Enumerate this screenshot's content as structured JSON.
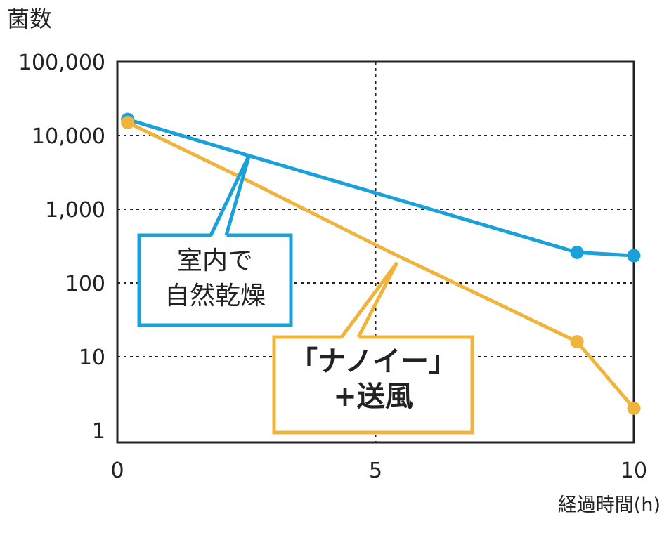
{
  "chart_data": {
    "type": "line",
    "ylabel": "菌数",
    "xlabel": "経過時間(h)",
    "yscale": "log",
    "ylim": [
      1,
      100000
    ],
    "xlim": [
      0,
      10
    ],
    "x_ticks": [
      "0",
      "5",
      "10"
    ],
    "y_ticks": [
      "1",
      "10",
      "100",
      "1,000",
      "10,000",
      "100,000"
    ],
    "grid": "dotted",
    "series": [
      {
        "name": "室内で自然乾燥",
        "color": "#1ba1d9",
        "points": [
          [
            0.2,
            16500
          ],
          [
            2.6,
            5200
          ],
          [
            8.9,
            260
          ],
          [
            10,
            235
          ]
        ],
        "markers": [
          [
            0.2,
            16500
          ],
          [
            8.9,
            260
          ],
          [
            10,
            235
          ]
        ],
        "callout_lines": [
          "室内で",
          "自然乾燥"
        ]
      },
      {
        "name": "「ナノイー」+送風",
        "color": "#f0b43c",
        "points": [
          [
            0.2,
            15000
          ],
          [
            2.4,
            2700
          ],
          [
            5.2,
            280
          ],
          [
            8.9,
            16
          ],
          [
            10,
            2
          ]
        ],
        "markers": [
          [
            0.2,
            15000
          ],
          [
            8.9,
            16
          ],
          [
            10,
            2
          ]
        ],
        "callout_lines": [
          "「ナノイー」",
          "+送風"
        ]
      }
    ]
  }
}
